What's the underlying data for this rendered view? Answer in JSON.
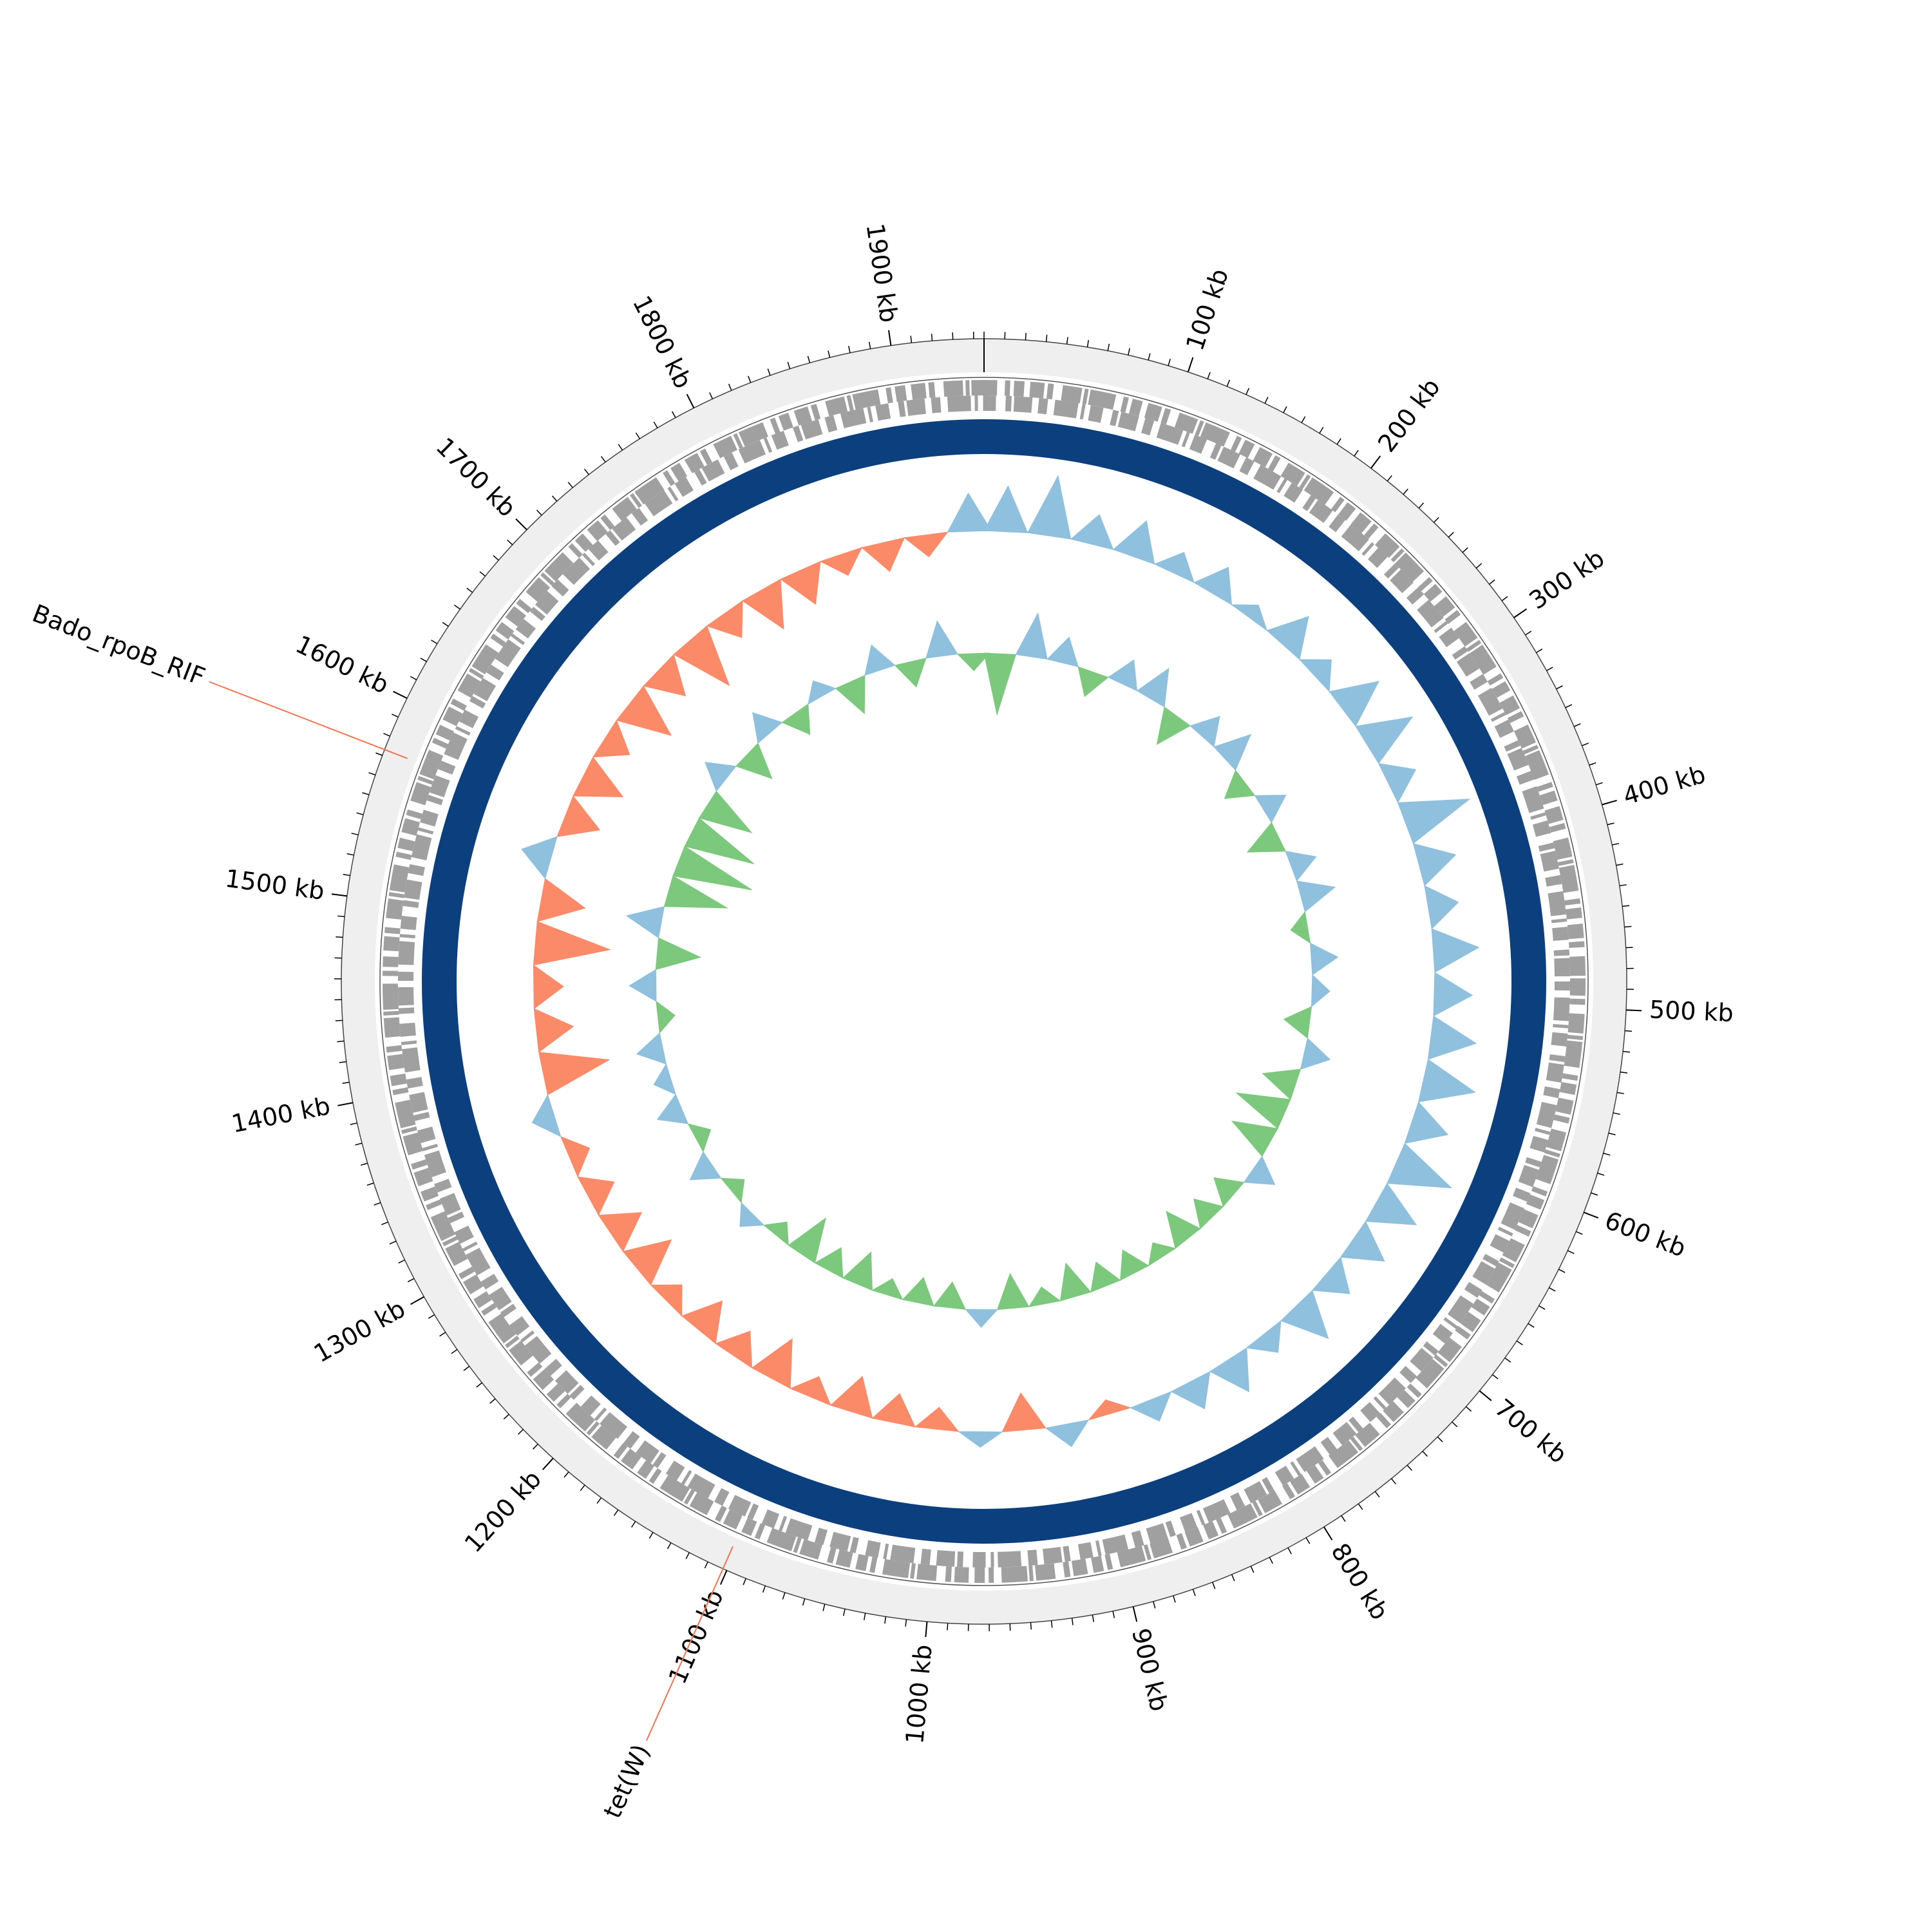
{
  "chart_data": {
    "type": "circular",
    "xlim": [
      0,
      1945
    ],
    "xticks": [
      {
        "value": 100,
        "label": "100 kb"
      },
      {
        "value": 200,
        "label": "200 kb"
      },
      {
        "value": 300,
        "label": "300 kb"
      },
      {
        "value": 400,
        "label": "400 kb"
      },
      {
        "value": 500,
        "label": "500 kb"
      },
      {
        "value": 600,
        "label": "600 kb"
      },
      {
        "value": 700,
        "label": "700 kb"
      },
      {
        "value": 800,
        "label": "800 kb"
      },
      {
        "value": 900,
        "label": "900 kb"
      },
      {
        "value": 1000,
        "label": "1000 kb"
      },
      {
        "value": 1100,
        "label": "1100 kb"
      },
      {
        "value": 1200,
        "label": "1200 kb"
      },
      {
        "value": 1300,
        "label": "1300 kb"
      },
      {
        "value": 1400,
        "label": "1400 kb"
      },
      {
        "value": 1500,
        "label": "1500 kb"
      },
      {
        "value": 1600,
        "label": "1600 kb"
      },
      {
        "value": 1700,
        "label": "1700 kb"
      },
      {
        "value": 1800,
        "label": "1800 kb"
      },
      {
        "value": 1900,
        "label": "1900 kb"
      }
    ],
    "minor_tick_interval": 10,
    "annotations": [
      {
        "label": "Bado_rpoB_RIF",
        "x": 1573,
        "color": "#2a6ead",
        "line_color": "#f4734f"
      },
      {
        "label": "tet(W)",
        "x": 1102,
        "color": "#2a6ead",
        "line_color": "#f4734f"
      }
    ],
    "x": [
      0,
      30,
      60,
      90,
      120,
      150,
      180,
      210,
      240,
      270,
      300,
      330,
      360,
      390,
      420,
      450,
      480,
      510,
      540,
      570,
      600,
      630,
      660,
      690,
      720,
      750,
      780,
      810,
      840,
      870,
      900,
      930,
      960,
      990,
      1020,
      1050,
      1080,
      1110,
      1140,
      1170,
      1200,
      1230,
      1260,
      1290,
      1320,
      1350,
      1380,
      1410,
      1440,
      1470,
      1500,
      1530,
      1560,
      1590,
      1620,
      1650,
      1680,
      1710,
      1740,
      1770,
      1800,
      1830,
      1860,
      1890,
      1920
    ],
    "series": [
      {
        "color_positive": "#8fc0de",
        "color_negative": "#fb8a68",
        "values": [
          0.6,
          0.8,
          0.4,
          0.5,
          0.3,
          0.4,
          0.2,
          0.5,
          0.3,
          0.6,
          0.7,
          0.4,
          0.9,
          0.5,
          0.4,
          0.6,
          0.5,
          0.6,
          0.7,
          0.5,
          0.8,
          0.6,
          0.5,
          0.4,
          0.6,
          0.3,
          0.5,
          0.4,
          0.3,
          -0.2,
          0.3,
          -0.5,
          0.2,
          -0.3,
          -0.4,
          -0.5,
          -0.3,
          -0.6,
          -0.4,
          -0.5,
          -0.3,
          -0.6,
          -0.5,
          -0.4,
          -0.3,
          0.3,
          -0.9,
          -0.5,
          -0.4,
          -1.0,
          -0.6,
          0.4,
          -0.5,
          -0.6,
          -0.4,
          -0.7,
          -0.5,
          -0.8,
          -0.4,
          -0.6,
          -0.5,
          -0.3,
          -0.4,
          -0.3,
          0.5
        ]
      },
      {
        "color_positive": "#8fc0de",
        "color_negative": "#7cc87c",
        "values": [
          -0.7,
          0.5,
          0.3,
          -0.3,
          0.3,
          0.4,
          -0.4,
          0.3,
          0.4,
          -0.3,
          0.3,
          -0.4,
          0.3,
          0.4,
          -0.2,
          0.3,
          0.2,
          -0.3,
          0.3,
          -0.4,
          -0.6,
          -0.5,
          0.3,
          -0.3,
          -0.3,
          -0.4,
          -0.2,
          -0.3,
          -0.3,
          -0.4,
          -0.2,
          -0.4,
          0.2,
          -0.3,
          -0.3,
          -0.2,
          -0.4,
          -0.3,
          -0.5,
          -0.2,
          0.2,
          -0.2,
          0.3,
          -0.2,
          0.3,
          0.2,
          0.3,
          -0.2,
          0.3,
          -0.5,
          0.4,
          -0.7,
          -0.9,
          -0.8,
          -0.6,
          0.3,
          -0.4,
          0.3,
          -0.3,
          0.2,
          -0.4,
          0.3,
          -0.3,
          0.4,
          -0.2
        ]
      }
    ]
  }
}
